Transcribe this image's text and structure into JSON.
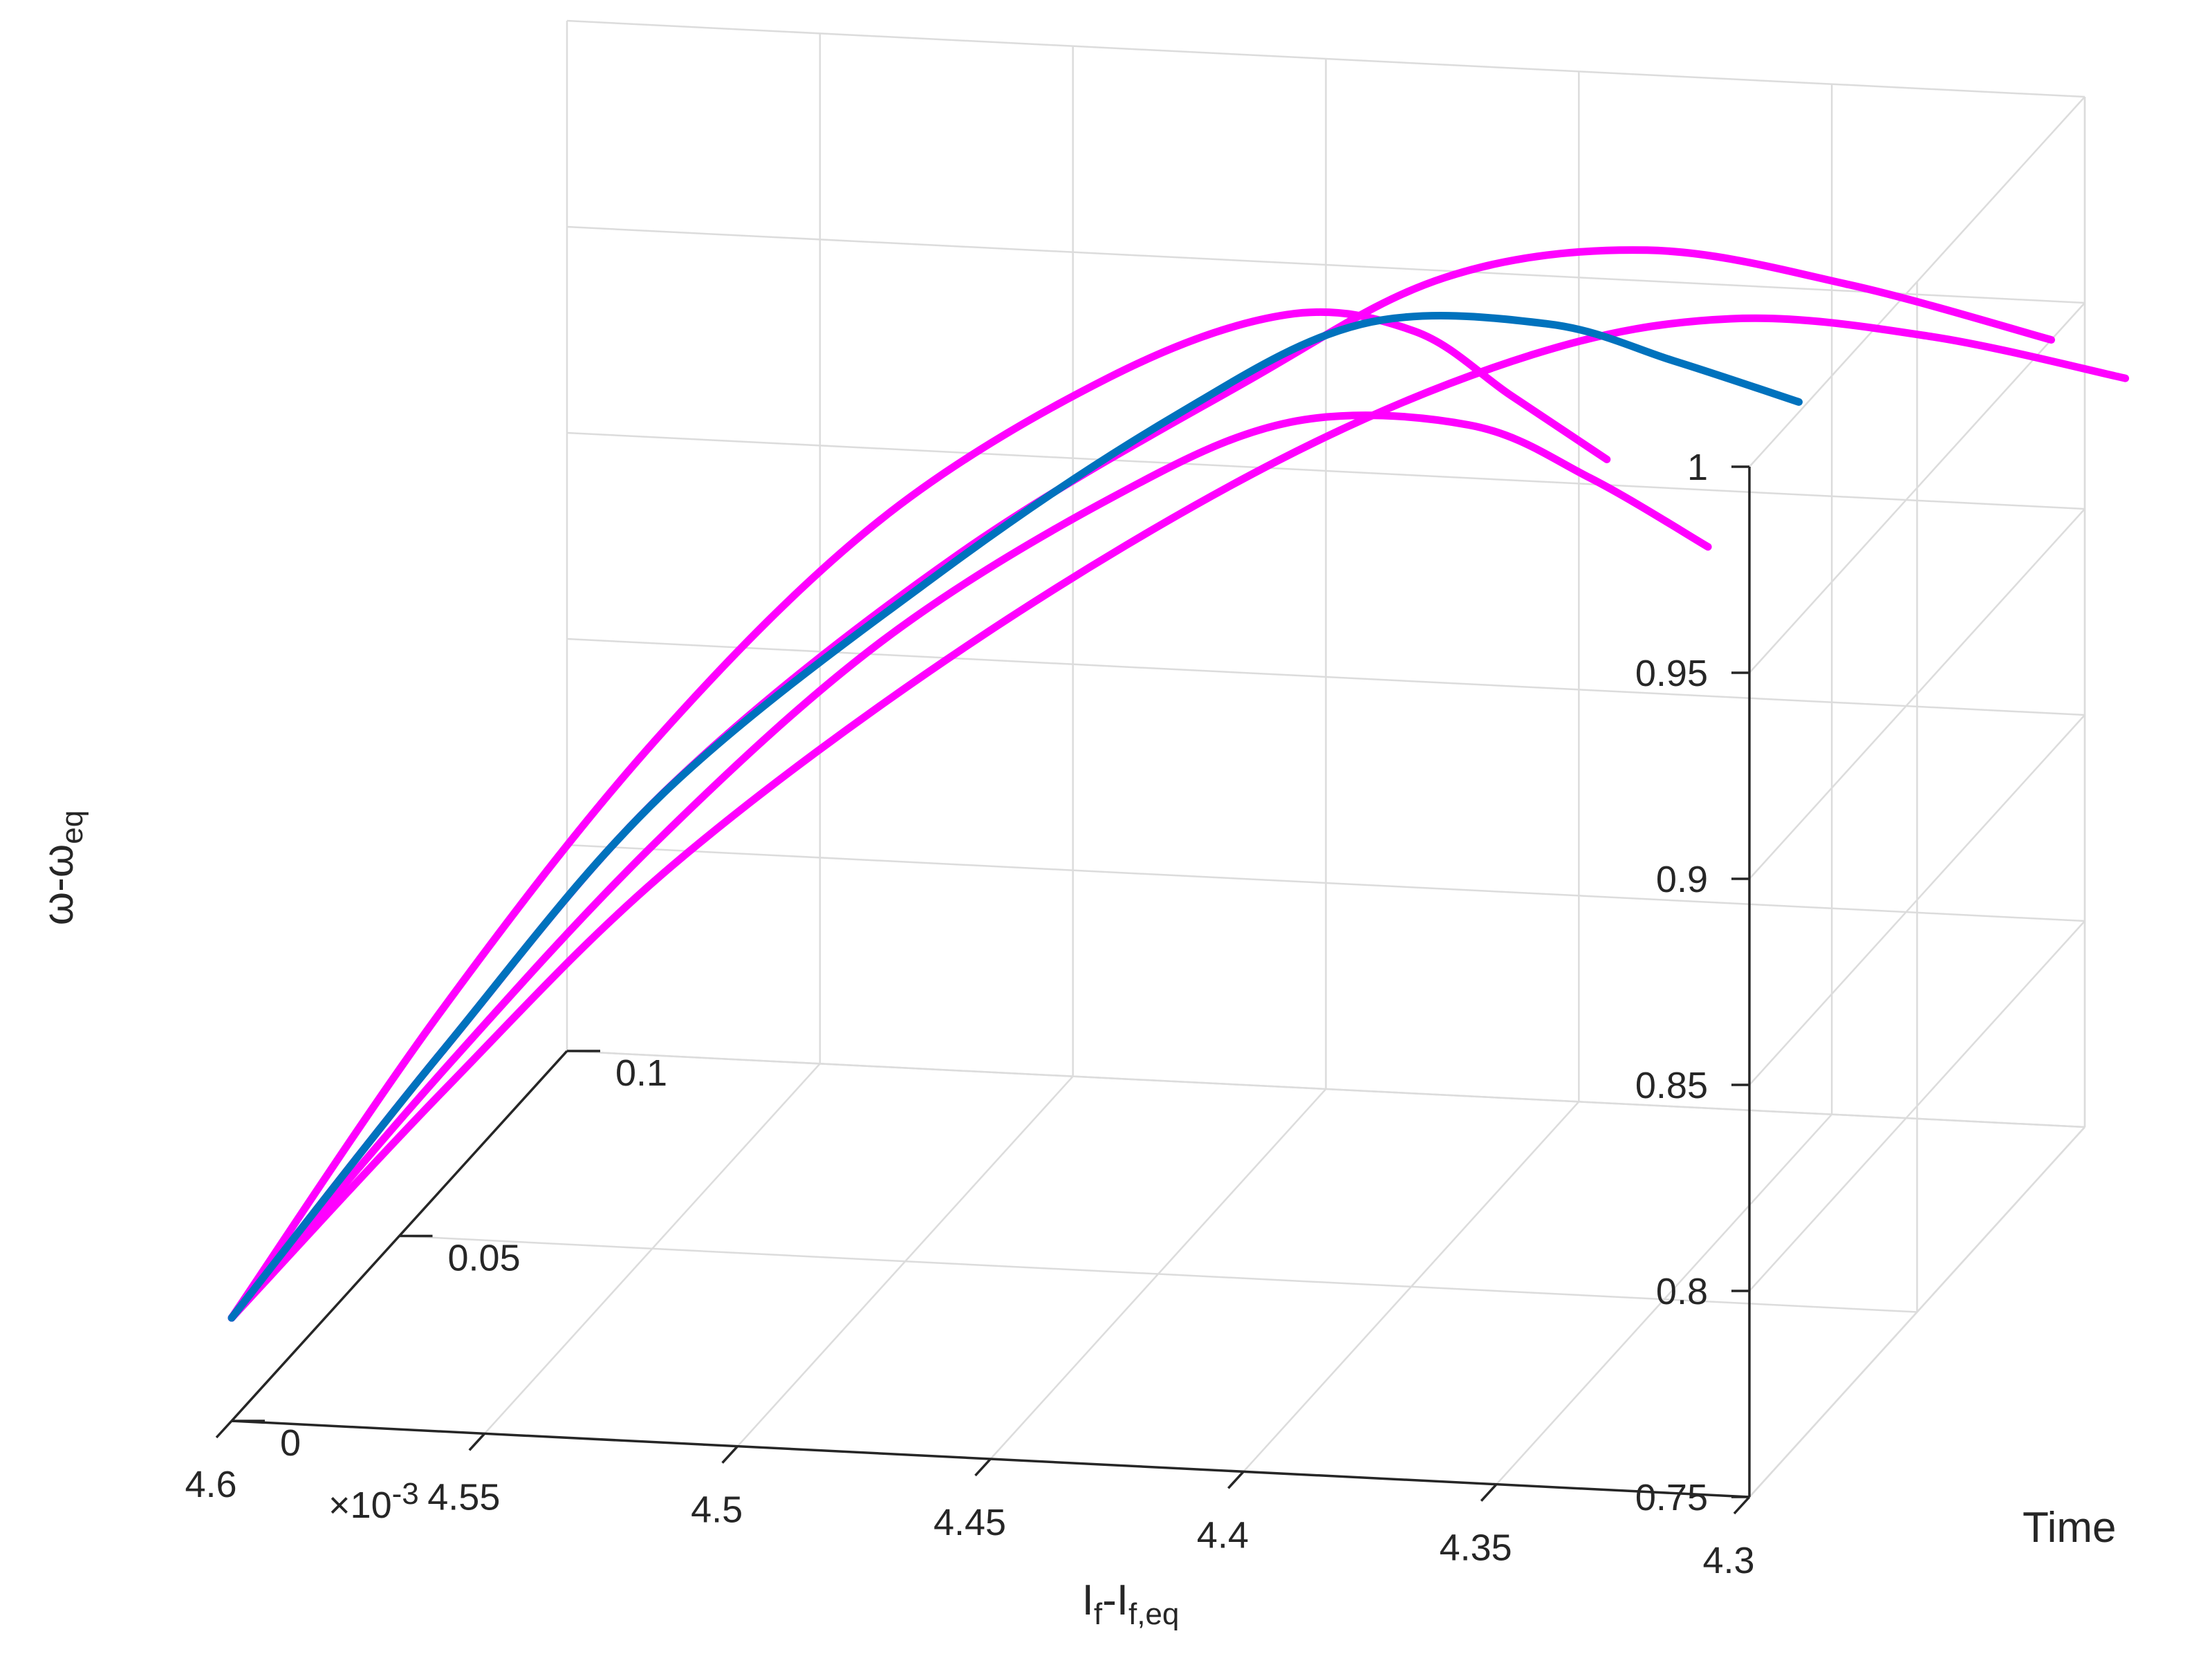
{
  "chart_data": {
    "type": "line",
    "projection": "3d",
    "xlabel": "I",
    "xlabel_sub": "f",
    "xlabel_mid": "-I",
    "xlabel_sub2": "f,eq",
    "ylabel": "Time",
    "zlabel": "ω-ω",
    "zlabel_sub": "eq",
    "x_exponent": "×10",
    "x_exponent_power": "-3",
    "x_ticks": [
      "4.6",
      "4.55",
      "4.5",
      "4.45",
      "4.4",
      "4.35",
      "4.3"
    ],
    "y_ticks": [
      "0",
      "0.05",
      "0.1"
    ],
    "z_ticks": [
      "0.75",
      "0.8",
      "0.85",
      "0.9",
      "0.95",
      "1"
    ],
    "xlim": [
      4.3,
      4.6
    ],
    "ylim": [
      0,
      0.1
    ],
    "zlim": [
      0.75,
      1.0
    ],
    "grid": true,
    "colors": {
      "primary": "#0072BD",
      "variants": "#FF00FF"
    },
    "series": [
      {
        "color": "#FF00FF",
        "x": [
          4.6,
          4.56,
          4.52,
          4.48,
          4.44,
          4.41,
          4.39,
          4.375,
          4.36
        ],
        "y": [
          0,
          0.002,
          0.006,
          0.012,
          0.02,
          0.028,
          0.036,
          0.042,
          0.048
        ],
        "z": [
          0.775,
          0.85,
          0.915,
          0.965,
          0.995,
          1.005,
          0.995,
          0.975,
          0.955
        ]
      },
      {
        "color": "#FF00FF",
        "x": [
          4.6,
          4.56,
          4.52,
          4.47,
          4.42,
          4.39,
          4.36,
          4.33,
          4.3
        ],
        "y": [
          0,
          0.003,
          0.009,
          0.02,
          0.032,
          0.045,
          0.06,
          0.075,
          0.09
        ],
        "z": [
          0.775,
          0.84,
          0.9,
          0.95,
          0.985,
          1.0,
          0.995,
          0.975,
          0.95
        ]
      },
      {
        "color": "#0072BD",
        "x": [
          4.6,
          4.56,
          4.52,
          4.47,
          4.43,
          4.4,
          4.37,
          4.35,
          4.33
        ],
        "y": [
          0,
          0.003,
          0.008,
          0.016,
          0.025,
          0.035,
          0.045,
          0.053,
          0.06
        ],
        "z": [
          0.775,
          0.84,
          0.9,
          0.95,
          0.982,
          0.997,
          0.99,
          0.975,
          0.96
        ]
      },
      {
        "color": "#FF00FF",
        "x": [
          4.6,
          4.56,
          4.52,
          4.48,
          4.44,
          4.41,
          4.38,
          4.36,
          4.34
        ],
        "y": [
          0,
          0.003,
          0.007,
          0.013,
          0.021,
          0.029,
          0.037,
          0.043,
          0.048
        ],
        "z": [
          0.775,
          0.835,
          0.89,
          0.935,
          0.965,
          0.978,
          0.972,
          0.955,
          0.935
        ]
      },
      {
        "color": "#FF00FF",
        "x": [
          4.6,
          4.56,
          4.52,
          4.47,
          4.42,
          4.38,
          4.35,
          4.32,
          4.29
        ],
        "y": [
          0,
          0.004,
          0.011,
          0.024,
          0.04,
          0.056,
          0.07,
          0.084,
          0.097
        ],
        "z": [
          0.775,
          0.83,
          0.88,
          0.925,
          0.958,
          0.972,
          0.97,
          0.955,
          0.935
        ]
      }
    ]
  }
}
